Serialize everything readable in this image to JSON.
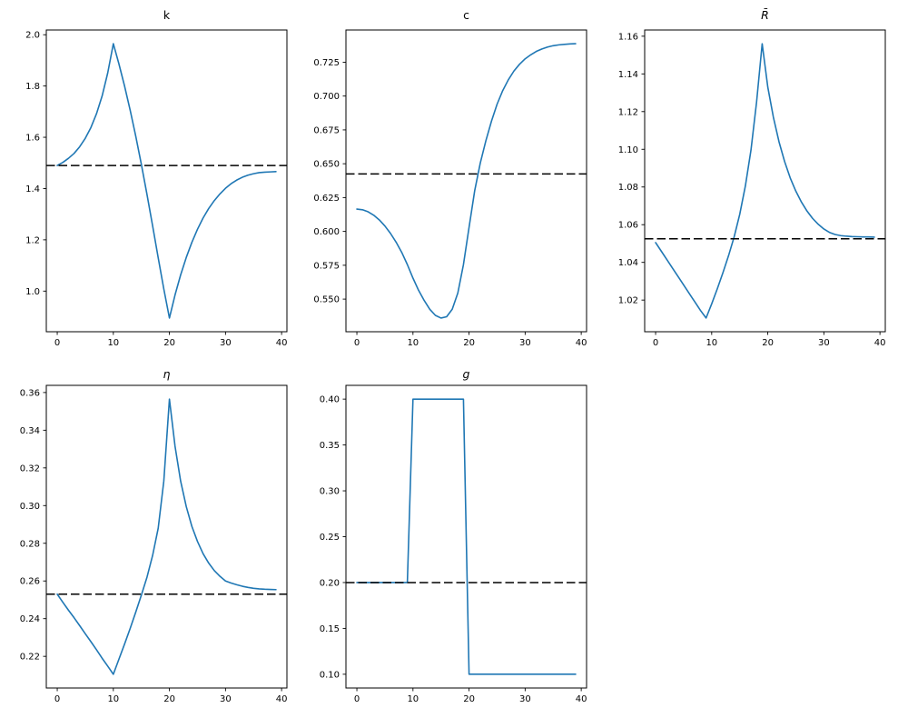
{
  "figure": {
    "background": "#ffffff",
    "series_color": "#1f77b4",
    "steady_state_line_color": "#000000",
    "steady_state_line_style": "dashed"
  },
  "chart_data": [
    {
      "type": "line",
      "title": "k",
      "title_style": "normal",
      "legend": null,
      "grid": false,
      "xlabel": "",
      "ylabel": "",
      "xlim": [
        -1.95,
        40.95
      ],
      "ylim": [
        0.8415,
        2.0185
      ],
      "xticks": {
        "values": [
          0,
          10,
          20,
          30,
          40
        ],
        "labels": [
          "0",
          "10",
          "20",
          "30",
          "40"
        ]
      },
      "yticks": {
        "values": [
          1.0,
          1.2,
          1.4,
          1.6,
          1.8,
          2.0
        ],
        "labels": [
          "1.0",
          "1.2",
          "1.4",
          "1.6",
          "1.8",
          "2.0"
        ]
      },
      "steady_state": 1.49,
      "x": [
        0,
        1,
        2,
        3,
        4,
        5,
        6,
        7,
        8,
        9,
        10,
        11,
        12,
        13,
        14,
        15,
        16,
        17,
        18,
        19,
        20,
        21,
        22,
        23,
        24,
        25,
        26,
        27,
        28,
        29,
        30,
        31,
        32,
        33,
        34,
        35,
        36,
        37,
        38,
        39
      ],
      "y": [
        1.49,
        1.502,
        1.518,
        1.537,
        1.563,
        1.596,
        1.638,
        1.692,
        1.761,
        1.851,
        1.965,
        1.886,
        1.8,
        1.706,
        1.604,
        1.494,
        1.377,
        1.255,
        1.13,
        1.008,
        0.895,
        0.985,
        1.063,
        1.131,
        1.19,
        1.241,
        1.285,
        1.322,
        1.353,
        1.379,
        1.401,
        1.419,
        1.433,
        1.444,
        1.452,
        1.458,
        1.462,
        1.464,
        1.465,
        1.466
      ]
    },
    {
      "type": "line",
      "title": "c",
      "title_style": "normal",
      "legend": null,
      "grid": false,
      "xlabel": "",
      "ylabel": "",
      "xlim": [
        -1.95,
        40.95
      ],
      "ylim": [
        0.5259,
        0.7488
      ],
      "xticks": {
        "values": [
          0,
          10,
          20,
          30,
          40
        ],
        "labels": [
          "0",
          "10",
          "20",
          "30",
          "40"
        ]
      },
      "yticks": {
        "values": [
          0.55,
          0.575,
          0.6,
          0.625,
          0.65,
          0.675,
          0.7,
          0.725
        ],
        "labels": [
          "0.550",
          "0.575",
          "0.600",
          "0.625",
          "0.650",
          "0.675",
          "0.700",
          "0.725"
        ]
      },
      "steady_state": 0.6425,
      "x": [
        0,
        1,
        2,
        3,
        4,
        5,
        6,
        7,
        8,
        9,
        10,
        11,
        12,
        13,
        14,
        15,
        16,
        17,
        18,
        19,
        20,
        21,
        22,
        23,
        24,
        25,
        26,
        27,
        28,
        29,
        30,
        31,
        32,
        33,
        34,
        35,
        36,
        37,
        38,
        39
      ],
      "y": [
        0.6165,
        0.616,
        0.6145,
        0.612,
        0.6085,
        0.604,
        0.5985,
        0.592,
        0.5845,
        0.5755,
        0.5655,
        0.5565,
        0.549,
        0.5425,
        0.538,
        0.536,
        0.537,
        0.5425,
        0.5545,
        0.5755,
        0.603,
        0.63,
        0.6505,
        0.667,
        0.6815,
        0.694,
        0.704,
        0.712,
        0.7185,
        0.7235,
        0.7275,
        0.7305,
        0.733,
        0.7348,
        0.7362,
        0.7372,
        0.7378,
        0.7382,
        0.7385,
        0.7387
      ]
    },
    {
      "type": "line",
      "title": "R̄",
      "title_style": "italic",
      "legend": null,
      "grid": false,
      "xlabel": "",
      "ylabel": "",
      "xlim": [
        -1.95,
        40.95
      ],
      "ylim": [
        1.0032,
        1.1633
      ],
      "xticks": {
        "values": [
          0,
          10,
          20,
          30,
          40
        ],
        "labels": [
          "0",
          "10",
          "20",
          "30",
          "40"
        ]
      },
      "yticks": {
        "values": [
          1.02,
          1.04,
          1.06,
          1.08,
          1.1,
          1.12,
          1.14,
          1.16
        ],
        "labels": [
          "1.02",
          "1.04",
          "1.06",
          "1.08",
          "1.10",
          "1.12",
          "1.14",
          "1.16"
        ]
      },
      "steady_state": 1.0525,
      "x": [
        0,
        1,
        2,
        3,
        4,
        5,
        6,
        7,
        8,
        9,
        10,
        11,
        12,
        13,
        14,
        15,
        16,
        17,
        18,
        19,
        20,
        21,
        22,
        23,
        24,
        25,
        26,
        27,
        28,
        29,
        30,
        31,
        32,
        33,
        34,
        35,
        36,
        37,
        38,
        39
      ],
      "y": [
        1.0505,
        1.046,
        1.0415,
        1.037,
        1.0325,
        1.028,
        1.0235,
        1.019,
        1.0145,
        1.0105,
        1.018,
        1.026,
        1.0345,
        1.0435,
        1.0535,
        1.0655,
        1.0805,
        1.0995,
        1.125,
        1.156,
        1.133,
        1.117,
        1.104,
        1.0935,
        1.0848,
        1.0778,
        1.072,
        1.0672,
        1.0633,
        1.0602,
        1.0577,
        1.0559,
        1.0548,
        1.0542,
        1.0539,
        1.0537,
        1.0536,
        1.0535,
        1.0535,
        1.0534
      ]
    },
    {
      "type": "line",
      "title": "η",
      "title_style": "italic",
      "legend": null,
      "grid": false,
      "xlabel": "",
      "ylabel": "",
      "xlim": [
        -1.95,
        40.95
      ],
      "ylim": [
        0.2032,
        0.3638
      ],
      "xticks": {
        "values": [
          0,
          10,
          20,
          30,
          40
        ],
        "labels": [
          "0",
          "10",
          "20",
          "30",
          "40"
        ]
      },
      "yticks": {
        "values": [
          0.22,
          0.24,
          0.26,
          0.28,
          0.3,
          0.32,
          0.34,
          0.36
        ],
        "labels": [
          "0.22",
          "0.24",
          "0.26",
          "0.28",
          "0.30",
          "0.32",
          "0.34",
          "0.36"
        ]
      },
      "steady_state": 0.253,
      "x": [
        0,
        1,
        2,
        3,
        4,
        5,
        6,
        7,
        8,
        9,
        10,
        11,
        12,
        13,
        14,
        15,
        16,
        17,
        18,
        19,
        20,
        21,
        22,
        23,
        24,
        25,
        26,
        27,
        28,
        29,
        30,
        31,
        32,
        33,
        34,
        35,
        36,
        37,
        38,
        39
      ],
      "y": [
        0.253,
        0.2487,
        0.2445,
        0.2405,
        0.2363,
        0.232,
        0.2278,
        0.2235,
        0.219,
        0.2148,
        0.2105,
        0.2185,
        0.2265,
        0.2348,
        0.2435,
        0.2525,
        0.262,
        0.2735,
        0.288,
        0.313,
        0.3565,
        0.3315,
        0.313,
        0.2995,
        0.289,
        0.281,
        0.2745,
        0.2695,
        0.2655,
        0.2625,
        0.26,
        0.2589,
        0.258,
        0.2572,
        0.2566,
        0.2561,
        0.2558,
        0.2556,
        0.2555,
        0.2554
      ]
    },
    {
      "type": "line",
      "title": "g",
      "title_style": "italic",
      "legend": null,
      "grid": false,
      "xlabel": "",
      "ylabel": "",
      "xlim": [
        -1.95,
        40.95
      ],
      "ylim": [
        0.085,
        0.415
      ],
      "xticks": {
        "values": [
          0,
          10,
          20,
          30,
          40
        ],
        "labels": [
          "0",
          "10",
          "20",
          "30",
          "40"
        ]
      },
      "yticks": {
        "values": [
          0.1,
          0.15,
          0.2,
          0.25,
          0.3,
          0.35,
          0.4
        ],
        "labels": [
          "0.10",
          "0.15",
          "0.20",
          "0.25",
          "0.30",
          "0.35",
          "0.40"
        ]
      },
      "steady_state": 0.2,
      "x": [
        0,
        1,
        2,
        3,
        4,
        5,
        6,
        7,
        8,
        9,
        10,
        11,
        12,
        13,
        14,
        15,
        16,
        17,
        18,
        19,
        20,
        21,
        22,
        23,
        24,
        25,
        26,
        27,
        28,
        29,
        30,
        31,
        32,
        33,
        34,
        35,
        36,
        37,
        38,
        39
      ],
      "y": [
        0.2,
        0.2,
        0.2,
        0.2,
        0.2,
        0.2,
        0.2,
        0.2,
        0.2,
        0.2,
        0.4,
        0.4,
        0.4,
        0.4,
        0.4,
        0.4,
        0.4,
        0.4,
        0.4,
        0.4,
        0.1,
        0.1,
        0.1,
        0.1,
        0.1,
        0.1,
        0.1,
        0.1,
        0.1,
        0.1,
        0.1,
        0.1,
        0.1,
        0.1,
        0.1,
        0.1,
        0.1,
        0.1,
        0.1,
        0.1
      ]
    }
  ]
}
